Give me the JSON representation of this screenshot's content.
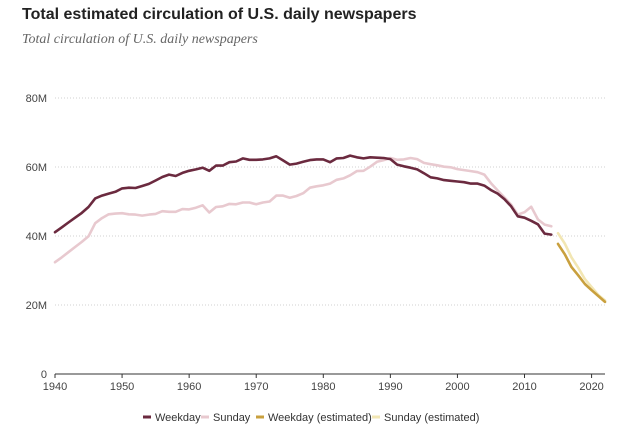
{
  "chart_data": {
    "type": "line",
    "title": "Total estimated circulation of U.S. daily newspapers",
    "subtitle": "Total circulation of U.S. daily newspapers",
    "xlabel": "",
    "ylabel": "",
    "xlim": [
      1940,
      2022
    ],
    "ylim": [
      0,
      80
    ],
    "x_ticks": [
      1940,
      1950,
      1960,
      1970,
      1980,
      1990,
      2000,
      2010,
      2020
    ],
    "y_ticks": [
      {
        "value": 0,
        "label": "0"
      },
      {
        "value": 20,
        "label": "20M"
      },
      {
        "value": 40,
        "label": "40M"
      },
      {
        "value": 60,
        "label": "60M"
      },
      {
        "value": 80,
        "label": "80M"
      }
    ],
    "legend_position": "bottom",
    "series": [
      {
        "name": "Weekday",
        "color": "#6b2a3f",
        "points": [
          [
            1940,
            41.1
          ],
          [
            1941,
            42.5
          ],
          [
            1942,
            43.9
          ],
          [
            1943,
            45.3
          ],
          [
            1944,
            46.7
          ],
          [
            1945,
            48.4
          ],
          [
            1946,
            50.9
          ],
          [
            1947,
            51.7
          ],
          [
            1948,
            52.3
          ],
          [
            1949,
            52.8
          ],
          [
            1950,
            53.8
          ],
          [
            1951,
            54.0
          ],
          [
            1952,
            53.9
          ],
          [
            1953,
            54.5
          ],
          [
            1954,
            55.1
          ],
          [
            1955,
            56.1
          ],
          [
            1956,
            57.1
          ],
          [
            1957,
            57.8
          ],
          [
            1958,
            57.4
          ],
          [
            1959,
            58.3
          ],
          [
            1960,
            58.9
          ],
          [
            1961,
            59.3
          ],
          [
            1962,
            59.8
          ],
          [
            1963,
            58.9
          ],
          [
            1964,
            60.4
          ],
          [
            1965,
            60.4
          ],
          [
            1966,
            61.4
          ],
          [
            1967,
            61.6
          ],
          [
            1968,
            62.5
          ],
          [
            1969,
            62.1
          ],
          [
            1970,
            62.1
          ],
          [
            1971,
            62.2
          ],
          [
            1972,
            62.5
          ],
          [
            1973,
            63.1
          ],
          [
            1974,
            61.9
          ],
          [
            1975,
            60.7
          ],
          [
            1976,
            61.0
          ],
          [
            1977,
            61.5
          ],
          [
            1978,
            62.0
          ],
          [
            1979,
            62.2
          ],
          [
            1980,
            62.2
          ],
          [
            1981,
            61.4
          ],
          [
            1982,
            62.5
          ],
          [
            1983,
            62.6
          ],
          [
            1984,
            63.3
          ],
          [
            1985,
            62.8
          ],
          [
            1986,
            62.5
          ],
          [
            1987,
            62.8
          ],
          [
            1988,
            62.7
          ],
          [
            1989,
            62.6
          ],
          [
            1990,
            62.3
          ],
          [
            1991,
            60.7
          ],
          [
            1992,
            60.2
          ],
          [
            1993,
            59.8
          ],
          [
            1994,
            59.3
          ],
          [
            1995,
            58.2
          ],
          [
            1996,
            57.0
          ],
          [
            1997,
            56.7
          ],
          [
            1998,
            56.2
          ],
          [
            1999,
            56.0
          ],
          [
            2000,
            55.8
          ],
          [
            2001,
            55.6
          ],
          [
            2002,
            55.2
          ],
          [
            2003,
            55.2
          ],
          [
            2004,
            54.6
          ],
          [
            2005,
            53.3
          ],
          [
            2006,
            52.3
          ],
          [
            2007,
            50.7
          ],
          [
            2008,
            48.6
          ],
          [
            2009,
            45.7
          ],
          [
            2010,
            45.3
          ],
          [
            2011,
            44.4
          ],
          [
            2012,
            43.4
          ],
          [
            2013,
            40.7
          ],
          [
            2014,
            40.4
          ]
        ]
      },
      {
        "name": "Sunday",
        "color": "#e8c9cf",
        "points": [
          [
            1940,
            32.4
          ],
          [
            1941,
            33.8
          ],
          [
            1942,
            35.3
          ],
          [
            1943,
            36.8
          ],
          [
            1944,
            38.3
          ],
          [
            1945,
            39.9
          ],
          [
            1946,
            43.7
          ],
          [
            1947,
            45.2
          ],
          [
            1948,
            46.3
          ],
          [
            1949,
            46.5
          ],
          [
            1950,
            46.6
          ],
          [
            1951,
            46.3
          ],
          [
            1952,
            46.2
          ],
          [
            1953,
            45.9
          ],
          [
            1954,
            46.2
          ],
          [
            1955,
            46.4
          ],
          [
            1956,
            47.2
          ],
          [
            1957,
            47.0
          ],
          [
            1958,
            47.0
          ],
          [
            1959,
            47.8
          ],
          [
            1960,
            47.7
          ],
          [
            1961,
            48.2
          ],
          [
            1962,
            48.9
          ],
          [
            1963,
            46.8
          ],
          [
            1964,
            48.4
          ],
          [
            1965,
            48.6
          ],
          [
            1966,
            49.3
          ],
          [
            1967,
            49.2
          ],
          [
            1968,
            49.7
          ],
          [
            1969,
            49.7
          ],
          [
            1970,
            49.2
          ],
          [
            1971,
            49.7
          ],
          [
            1972,
            50.0
          ],
          [
            1973,
            51.7
          ],
          [
            1974,
            51.7
          ],
          [
            1975,
            51.1
          ],
          [
            1976,
            51.6
          ],
          [
            1977,
            52.4
          ],
          [
            1978,
            54.0
          ],
          [
            1979,
            54.4
          ],
          [
            1980,
            54.7
          ],
          [
            1981,
            55.2
          ],
          [
            1982,
            56.3
          ],
          [
            1983,
            56.7
          ],
          [
            1984,
            57.6
          ],
          [
            1985,
            58.8
          ],
          [
            1986,
            58.9
          ],
          [
            1987,
            60.1
          ],
          [
            1988,
            61.5
          ],
          [
            1989,
            62.0
          ],
          [
            1990,
            62.6
          ],
          [
            1991,
            62.1
          ],
          [
            1992,
            62.2
          ],
          [
            1993,
            62.6
          ],
          [
            1994,
            62.3
          ],
          [
            1995,
            61.2
          ],
          [
            1996,
            60.8
          ],
          [
            1997,
            60.5
          ],
          [
            1998,
            60.1
          ],
          [
            1999,
            59.9
          ],
          [
            2000,
            59.4
          ],
          [
            2001,
            59.1
          ],
          [
            2002,
            58.8
          ],
          [
            2003,
            58.5
          ],
          [
            2004,
            57.8
          ],
          [
            2005,
            55.3
          ],
          [
            2006,
            53.2
          ],
          [
            2007,
            51.2
          ],
          [
            2008,
            49.1
          ],
          [
            2009,
            46.2
          ],
          [
            2010,
            46.9
          ],
          [
            2011,
            48.5
          ],
          [
            2012,
            44.8
          ],
          [
            2013,
            43.3
          ],
          [
            2014,
            42.8
          ]
        ]
      },
      {
        "name": "Weekday (estimated)",
        "color": "#c9a03e",
        "points": [
          [
            2015,
            37.7
          ],
          [
            2016,
            34.7
          ],
          [
            2017,
            31.0
          ],
          [
            2018,
            28.6
          ],
          [
            2019,
            26.1
          ],
          [
            2020,
            24.3
          ],
          [
            2021,
            22.6
          ],
          [
            2022,
            20.9
          ]
        ]
      },
      {
        "name": "Sunday (estimated)",
        "color": "#f2e6b3",
        "points": [
          [
            2015,
            40.8
          ],
          [
            2016,
            37.8
          ],
          [
            2017,
            33.8
          ],
          [
            2018,
            30.8
          ],
          [
            2019,
            27.5
          ],
          [
            2020,
            25.2
          ],
          [
            2021,
            22.9
          ],
          [
            2022,
            21.3
          ]
        ]
      }
    ]
  }
}
